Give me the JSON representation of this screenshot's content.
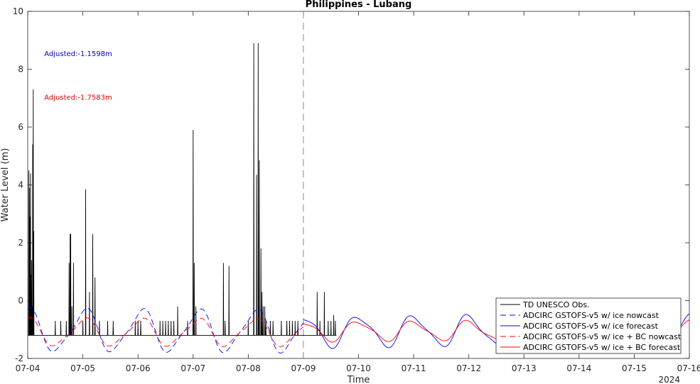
{
  "chart_data": {
    "type": "line",
    "title": "Philippines - Lubang",
    "xlabel": "Time",
    "ylabel": "Water Level (m)",
    "year_label": "2024",
    "xlim": [
      0,
      12
    ],
    "ylim": [
      -2,
      10
    ],
    "x_ticks": [
      0,
      1,
      2,
      3,
      4,
      5,
      6,
      7,
      8,
      9,
      10,
      11,
      12
    ],
    "x_tick_labels": [
      "07-04",
      "07-05",
      "07-06",
      "07-07",
      "07-08",
      "07-09",
      "07-10",
      "07-11",
      "07-12",
      "07-13",
      "07-14",
      "07-15",
      "07-16"
    ],
    "y_ticks": [
      -2,
      0,
      2,
      4,
      6,
      8,
      10
    ],
    "y_tick_labels": [
      "-2",
      "0",
      "2",
      "4",
      "6",
      "8",
      "10"
    ],
    "nowcast_forecast_divider_x": 5,
    "annotations": [
      {
        "text": "Adjusted:-1.1598m",
        "x": 0.3,
        "y": 8.45,
        "color": "#0000cc"
      },
      {
        "text": "Adjusted:-1.7583m",
        "x": 0.3,
        "y": 6.95,
        "color": "#dd0000"
      }
    ],
    "legend_position": "bottom-right",
    "series": [
      {
        "name": "TD UNESCO Obs.",
        "style": "solid",
        "color": "#000000",
        "baseline": -1.2,
        "x_range": [
          0,
          5.6
        ],
        "spikes": [
          [
            0.02,
            4.5
          ],
          [
            0.03,
            3.9
          ],
          [
            0.04,
            2.9
          ],
          [
            0.05,
            4.4
          ],
          [
            0.06,
            0.9
          ],
          [
            0.07,
            1.4
          ],
          [
            0.08,
            -0.2
          ],
          [
            0.09,
            5.4
          ],
          [
            0.1,
            7.3
          ],
          [
            0.11,
            2.4
          ],
          [
            0.5,
            -0.7
          ],
          [
            0.6,
            -0.7
          ],
          [
            0.7,
            -0.7
          ],
          [
            0.75,
            1.3
          ],
          [
            0.77,
            2.3
          ],
          [
            0.78,
            2.3
          ],
          [
            0.8,
            -0.2
          ],
          [
            0.83,
            1.3
          ],
          [
            1.0,
            -0.7
          ],
          [
            1.05,
            3.85
          ],
          [
            1.12,
            0.3
          ],
          [
            1.18,
            2.3
          ],
          [
            1.22,
            0.8
          ],
          [
            1.3,
            -0.7
          ],
          [
            1.45,
            -0.7
          ],
          [
            1.55,
            -0.7
          ],
          [
            1.95,
            -0.7
          ],
          [
            2.0,
            -0.7
          ],
          [
            2.05,
            -0.7
          ],
          [
            2.4,
            -0.7
          ],
          [
            2.45,
            -0.7
          ],
          [
            2.5,
            -0.7
          ],
          [
            2.55,
            -0.7
          ],
          [
            2.6,
            -0.7
          ],
          [
            2.65,
            -0.7
          ],
          [
            2.72,
            -0.2
          ],
          [
            2.9,
            -0.7
          ],
          [
            3.0,
            5.9
          ],
          [
            3.02,
            1.3
          ],
          [
            3.05,
            -0.2
          ],
          [
            3.55,
            1.3
          ],
          [
            3.58,
            -0.7
          ],
          [
            3.65,
            1.2
          ],
          [
            4.0,
            -0.7
          ],
          [
            4.1,
            8.9
          ],
          [
            4.15,
            4.35
          ],
          [
            4.18,
            8.9
          ],
          [
            4.2,
            4.85
          ],
          [
            4.23,
            1.8
          ],
          [
            4.25,
            0.3
          ],
          [
            4.27,
            -0.2
          ],
          [
            4.3,
            -0.2
          ],
          [
            4.32,
            -0.7
          ],
          [
            4.4,
            -0.7
          ],
          [
            4.45,
            -0.7
          ],
          [
            4.6,
            -0.7
          ],
          [
            4.7,
            -0.7
          ],
          [
            4.75,
            -0.7
          ],
          [
            4.8,
            -0.7
          ],
          [
            4.85,
            -0.7
          ],
          [
            4.9,
            -0.7
          ],
          [
            5.25,
            0.3
          ],
          [
            5.3,
            -0.7
          ],
          [
            5.38,
            0.3
          ],
          [
            5.45,
            -0.7
          ],
          [
            5.5,
            -0.7
          ],
          [
            5.55,
            -0.5
          ],
          [
            5.58,
            -0.7
          ]
        ]
      },
      {
        "name": "ADCIRC GSTOFS-v5 w/ ice nowcast",
        "style": "dashed",
        "color": "#0000ff",
        "x_range": [
          0,
          5
        ],
        "wave": {
          "base": -1.05,
          "amplitudes": [
            0.7,
            0.15
          ],
          "periods": [
            1.03,
            0.52
          ],
          "phases": [
            1.55,
            0.4
          ]
        }
      },
      {
        "name": "ADCIRC GSTOFS-v5 w/ ice forecast",
        "style": "solid",
        "color": "#0000ff",
        "x_range": [
          5,
          12
        ],
        "wave": {
          "base": -1.05,
          "amplitudes": [
            0.5,
            0.12
          ],
          "periods": [
            1.0,
            0.52
          ],
          "phases": [
            1.55,
            0.4
          ]
        }
      },
      {
        "name": "ADCIRC GSTOFS-v5 w/ ice + BC nowcast",
        "style": "dashed",
        "color": "#ff0000",
        "x_range": [
          0,
          5
        ],
        "wave": {
          "base": -1.1,
          "amplitudes": [
            0.45,
            0.1
          ],
          "periods": [
            1.03,
            0.52
          ],
          "phases": [
            1.6,
            0.4
          ]
        }
      },
      {
        "name": "ADCIRC GSTOFS-v5 w/ ice + BC forecast",
        "style": "solid",
        "color": "#ff0000",
        "x_range": [
          5,
          12
        ],
        "wave": {
          "base": -1.05,
          "amplitudes": [
            0.32,
            0.08
          ],
          "periods": [
            1.0,
            0.52
          ],
          "phases": [
            1.6,
            0.4
          ]
        }
      }
    ]
  }
}
